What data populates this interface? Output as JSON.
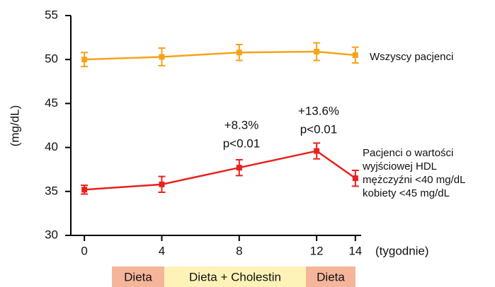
{
  "chart_data": {
    "type": "line",
    "y_label": "(mg/dL)",
    "x_label": "(tygodnie)",
    "x": [
      0,
      4,
      8,
      12,
      14
    ],
    "xlim": [
      -0.7,
      14.3
    ],
    "xticks": [
      0,
      4,
      8,
      12,
      14
    ],
    "ylim": [
      30,
      55
    ],
    "yticks": [
      30,
      35,
      40,
      45,
      50,
      55
    ],
    "series": [
      {
        "name": "Wszyscy pacjenci",
        "color": "#f5a31a",
        "values": [
          50.0,
          50.3,
          50.8,
          50.9,
          50.5
        ],
        "errors": [
          0.8,
          1.0,
          0.9,
          1.0,
          0.9
        ]
      },
      {
        "name": "Pacjenci o wartości wyjściowej HDL",
        "label_lines": [
          "Pacjenci o wartości",
          "wyjściowej HDL",
          "mężczyźni <40 mg/dL",
          "kobiety <45 mg/dL"
        ],
        "color": "#e8211d",
        "values": [
          35.2,
          35.8,
          37.7,
          39.6,
          36.5
        ],
        "errors": [
          0.5,
          0.9,
          0.9,
          0.9,
          0.9
        ]
      }
    ],
    "annotations": [
      [
        "+8.3%",
        "p<0.01"
      ],
      [
        "+13.6%",
        "p<0.01"
      ]
    ],
    "phases": [
      {
        "label": "Dieta",
        "color": "#f4b59a"
      },
      {
        "label": "Dieta + Cholestin",
        "color": "#fdf3b8"
      },
      {
        "label": "Dieta",
        "color": "#f4b59a"
      }
    ]
  }
}
